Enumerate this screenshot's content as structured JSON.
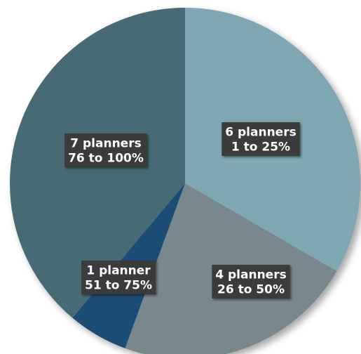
{
  "chart_data": {
    "type": "pie",
    "title": "",
    "slices": [
      {
        "lines": [
          "6 planners",
          "1 to 25%"
        ],
        "value": 6,
        "color": "#7fa7b3"
      },
      {
        "lines": [
          "4 planners",
          "26 to 50%"
        ],
        "value": 4,
        "color": "#78888d"
      },
      {
        "lines": [
          "1 planner",
          "51 to 75%"
        ],
        "value": 1,
        "color": "#1e4d76"
      },
      {
        "lines": [
          "7 planners",
          "76 to 100%"
        ],
        "value": 7,
        "color": "#476a74"
      }
    ],
    "legend": "none",
    "start_angle": "12 o'clock",
    "direction": "clockwise"
  }
}
